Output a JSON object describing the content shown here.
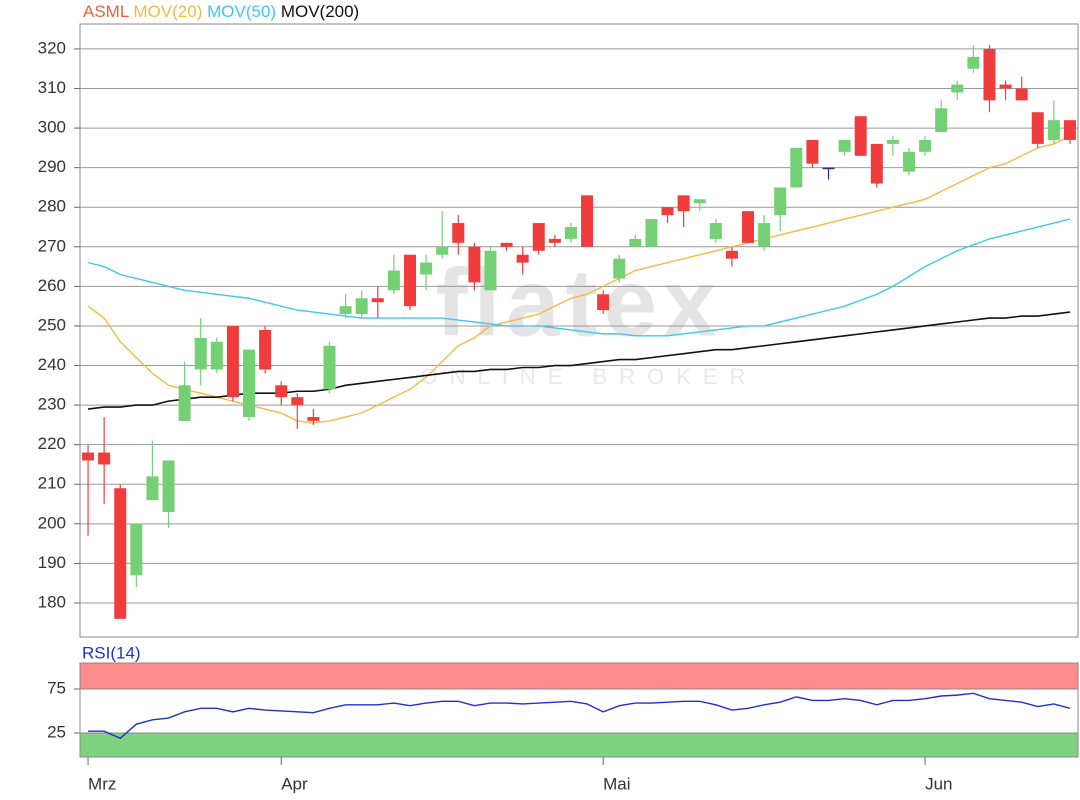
{
  "chart_data": [
    {
      "type": "candlestick",
      "name": "ASML",
      "name_color": "#f0603c",
      "up_color": "#74d074",
      "down_color": "#f03c3c",
      "flat_color": "#2828a0",
      "watermark": "flatex",
      "watermark_sub": "ONLINE BROKER",
      "categories": [
        "Mrz",
        null,
        null,
        null,
        null,
        null,
        null,
        null,
        null,
        null,
        null,
        null,
        "Apr",
        null,
        null,
        null,
        null,
        null,
        null,
        null,
        null,
        null,
        null,
        null,
        null,
        null,
        null,
        null,
        null,
        null,
        null,
        null,
        "Mai",
        null,
        null,
        null,
        null,
        null,
        null,
        null,
        null,
        null,
        null,
        null,
        null,
        null,
        null,
        null,
        null,
        null,
        null,
        null,
        "Jun",
        null,
        null,
        null,
        null,
        null,
        null,
        null,
        null,
        null
      ],
      "open": [
        218,
        218,
        209,
        187,
        206,
        203,
        226,
        239,
        239,
        250,
        227,
        249,
        235,
        232,
        227,
        234,
        253,
        253,
        257,
        259,
        268,
        263,
        268,
        276,
        270,
        259,
        271,
        268,
        276,
        272,
        272,
        283,
        258,
        262,
        270,
        270,
        280,
        283,
        281,
        272,
        269,
        279,
        270,
        278,
        285,
        297,
        290,
        294,
        303,
        296,
        296,
        289,
        294,
        299,
        309,
        315,
        320,
        311,
        310,
        304,
        297,
        302
      ],
      "high": [
        220,
        227,
        210,
        200,
        221,
        216,
        241,
        252,
        247,
        250,
        244,
        250,
        236,
        233,
        229,
        246,
        258,
        259,
        260,
        268,
        268,
        268,
        279,
        278,
        271,
        270,
        271,
        270,
        276,
        273,
        276,
        283,
        259,
        268,
        273,
        277,
        280,
        283,
        282,
        277,
        270,
        279,
        278,
        285,
        295,
        297,
        290,
        297,
        303,
        296,
        298,
        295,
        298,
        307,
        312,
        321,
        321,
        312,
        313,
        304,
        307,
        302
      ],
      "low": [
        197,
        205,
        176,
        184,
        206,
        199,
        226,
        235,
        238,
        231,
        226,
        238,
        230,
        224,
        225,
        233,
        252,
        252,
        252,
        258,
        254,
        259,
        267,
        268,
        259,
        259,
        269,
        263,
        268,
        270,
        271,
        270,
        253,
        261,
        270,
        270,
        276,
        275,
        279,
        271,
        265,
        271,
        269,
        274,
        285,
        290,
        287,
        293,
        293,
        285,
        293,
        288,
        293,
        299,
        307,
        314,
        304,
        307,
        307,
        295,
        296,
        296
      ],
      "close": [
        216,
        215,
        176,
        200,
        212,
        216,
        235,
        247,
        246,
        232,
        244,
        239,
        232,
        230,
        226,
        245,
        255,
        257,
        256,
        264,
        255,
        266,
        270,
        271,
        261,
        269,
        270,
        266,
        269,
        271,
        275,
        270,
        254,
        267,
        272,
        277,
        278,
        279,
        282,
        276,
        267,
        271,
        276,
        285,
        295,
        291,
        290,
        297,
        293,
        286,
        297,
        294,
        297,
        305,
        311,
        318,
        307,
        310,
        307,
        296,
        302,
        297
      ],
      "series": [
        {
          "name": "MOV(20)",
          "color": "#f5b942",
          "values": [
            255,
            252,
            246,
            242,
            238,
            235,
            234,
            233,
            232,
            231,
            230,
            229,
            228,
            226,
            225.5,
            226,
            227,
            228,
            230,
            232,
            234,
            237,
            241,
            245,
            247,
            250,
            251,
            252,
            253,
            255,
            257,
            258,
            260,
            262,
            264,
            265,
            266,
            267,
            268,
            269,
            270,
            271,
            272,
            273,
            274,
            275,
            276,
            277,
            278,
            279,
            280,
            281,
            282,
            284,
            286,
            288,
            290,
            291,
            293,
            295,
            296,
            298
          ]
        },
        {
          "name": "MOV(50)",
          "color": "#3cc8f0",
          "values": [
            266,
            265,
            263,
            262,
            261,
            260,
            259,
            258.5,
            258,
            257.5,
            257,
            256,
            255,
            254,
            253.5,
            253,
            252.5,
            252,
            252,
            252,
            252,
            252,
            252,
            251.5,
            251,
            250.5,
            250,
            250,
            250,
            249.5,
            249,
            248.5,
            248,
            248,
            247.5,
            247.5,
            247.5,
            248,
            248.5,
            249,
            249.5,
            250,
            250,
            251,
            252,
            253,
            254,
            255,
            256.5,
            258,
            260,
            262.5,
            265,
            267,
            269,
            270.5,
            272,
            273,
            274,
            275,
            276,
            277
          ]
        },
        {
          "name": "MOV(200)",
          "color": "#111111",
          "values": [
            229,
            229.5,
            229.5,
            230,
            230,
            231,
            231.5,
            232,
            232,
            232.5,
            233,
            233,
            233,
            233.5,
            233.5,
            234,
            235,
            235.5,
            236,
            236.5,
            237,
            237.5,
            238,
            238.5,
            238.5,
            239,
            239,
            239.5,
            239.5,
            240,
            240,
            240.5,
            241,
            241.5,
            241.5,
            242,
            242.5,
            243,
            243.5,
            244,
            244,
            244.5,
            245,
            245.5,
            246,
            246.5,
            247,
            247.5,
            248,
            248.5,
            249,
            249.5,
            250,
            250.5,
            251,
            251.5,
            252,
            252,
            252.5,
            252.5,
            253,
            253.5
          ]
        }
      ],
      "ylim": [
        171.4,
        326.3
      ],
      "yticks": [
        180,
        190,
        200,
        210,
        220,
        230,
        240,
        250,
        260,
        270,
        280,
        290,
        300,
        310,
        320
      ],
      "grid": true
    },
    {
      "type": "line",
      "title": "RSI(14)",
      "color": "#2030d0",
      "values": [
        27,
        27,
        19,
        35,
        40,
        42,
        49,
        53,
        53,
        49,
        53,
        51,
        50,
        49,
        48,
        53,
        57,
        57,
        57,
        59,
        56,
        59,
        61,
        61,
        56,
        59,
        59,
        58,
        59,
        60,
        61,
        58,
        49,
        56,
        59,
        59,
        60,
        61,
        61,
        57,
        51,
        53,
        57,
        60,
        66,
        62,
        62,
        64,
        62,
        57,
        62,
        62,
        64,
        67,
        68,
        70,
        64,
        62,
        60,
        55,
        58,
        53
      ],
      "ylim": [
        -2.3,
        104.5
      ],
      "yticks": [
        25,
        75
      ],
      "overbought_color": "#ff8c8c",
      "oversold_color": "#7ed47e"
    }
  ]
}
